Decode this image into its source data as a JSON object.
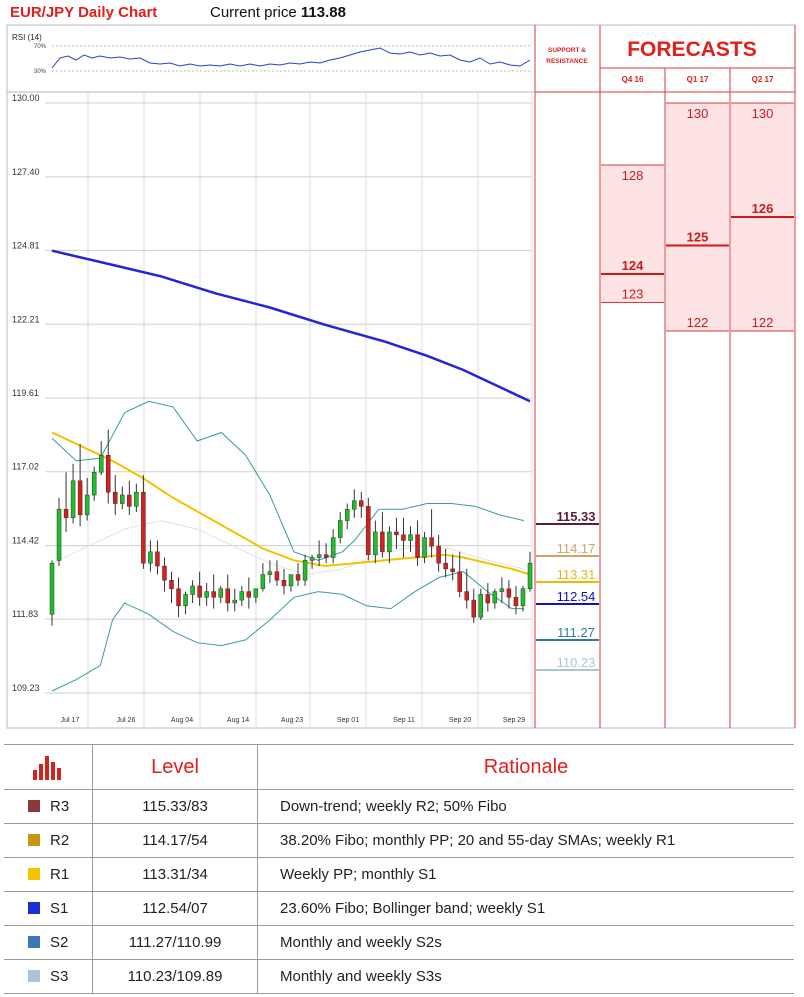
{
  "header": {
    "title": "EUR/JPY Daily Chart",
    "price_label": "Current price",
    "price_value": "113.88"
  },
  "rsi": {
    "label": "RSI (14)",
    "ticks": [
      "70%",
      "30%"
    ]
  },
  "chart_data": {
    "type": "candlestick",
    "title": "EUR/JPY Daily Chart",
    "y_ticks": [
      130.0,
      127.4,
      124.81,
      122.21,
      119.61,
      117.02,
      114.42,
      111.83,
      109.23
    ],
    "ylim": [
      108.0,
      130.3
    ],
    "x_ticks": [
      "Jul 17",
      "Jul 26",
      "Aug 04",
      "Aug 14",
      "Aug 23",
      "Sep 01",
      "Sep 11",
      "Sep 20",
      "Sep 29"
    ],
    "candles": [
      [
        112.0,
        113.9,
        113.8,
        111.6
      ],
      [
        113.9,
        116.1,
        115.7,
        113.7
      ],
      [
        115.7,
        117.0,
        115.4,
        114.9
      ],
      [
        115.4,
        117.3,
        116.7,
        115.2
      ],
      [
        116.7,
        118.0,
        115.5,
        115.1
      ],
      [
        115.5,
        116.8,
        116.2,
        115.3
      ],
      [
        116.2,
        117.2,
        117.0,
        116.0
      ],
      [
        117.0,
        118.1,
        117.6,
        116.9
      ],
      [
        117.6,
        118.5,
        116.3,
        115.9
      ],
      [
        116.3,
        116.9,
        115.9,
        115.5
      ],
      [
        115.9,
        116.5,
        116.2,
        115.7
      ],
      [
        116.2,
        116.7,
        115.8,
        115.5
      ],
      [
        115.8,
        116.6,
        116.3,
        115.6
      ],
      [
        116.3,
        116.9,
        113.8,
        113.6
      ],
      [
        113.8,
        114.6,
        114.2,
        113.5
      ],
      [
        114.2,
        114.6,
        113.7,
        113.4
      ],
      [
        113.7,
        114.0,
        113.2,
        112.8
      ],
      [
        113.2,
        113.5,
        112.9,
        112.4
      ],
      [
        112.9,
        113.3,
        112.3,
        111.9
      ],
      [
        112.3,
        112.8,
        112.7,
        112.0
      ],
      [
        112.7,
        113.2,
        113.0,
        112.4
      ],
      [
        113.0,
        113.5,
        112.6,
        112.3
      ],
      [
        112.6,
        113.1,
        112.8,
        112.3
      ],
      [
        112.8,
        113.4,
        112.6,
        112.2
      ],
      [
        112.6,
        113.0,
        112.9,
        112.4
      ],
      [
        112.9,
        113.4,
        112.4,
        112.1
      ],
      [
        112.4,
        112.9,
        112.5,
        112.1
      ],
      [
        112.5,
        113.0,
        112.8,
        112.3
      ],
      [
        112.8,
        113.3,
        112.6,
        112.2
      ],
      [
        112.6,
        112.9,
        112.9,
        112.4
      ],
      [
        112.9,
        113.8,
        113.4,
        112.8
      ],
      [
        113.4,
        113.9,
        113.5,
        113.1
      ],
      [
        113.5,
        113.9,
        113.2,
        113.0
      ],
      [
        113.2,
        113.6,
        113.0,
        112.7
      ],
      [
        113.0,
        113.4,
        113.4,
        112.8
      ],
      [
        113.4,
        113.8,
        113.2,
        113.0
      ],
      [
        113.2,
        114.1,
        113.9,
        113.0
      ],
      [
        113.9,
        114.1,
        114.0,
        113.6
      ],
      [
        114.0,
        114.6,
        114.1,
        113.7
      ],
      [
        114.1,
        114.5,
        114.0,
        113.8
      ],
      [
        114.0,
        115.0,
        114.7,
        113.8
      ],
      [
        114.7,
        115.6,
        115.3,
        114.5
      ],
      [
        115.3,
        115.9,
        115.7,
        115.0
      ],
      [
        115.7,
        116.4,
        116.0,
        115.4
      ],
      [
        116.0,
        116.3,
        115.8,
        115.4
      ],
      [
        115.8,
        116.1,
        114.1,
        113.9
      ],
      [
        114.1,
        115.3,
        114.9,
        113.8
      ],
      [
        114.9,
        115.6,
        114.2,
        114.0
      ],
      [
        114.2,
        115.1,
        114.9,
        113.8
      ],
      [
        114.9,
        115.4,
        114.8,
        114.3
      ],
      [
        114.8,
        115.4,
        114.6,
        114.0
      ],
      [
        114.6,
        115.1,
        114.8,
        114.2
      ],
      [
        114.8,
        115.3,
        114.0,
        113.7
      ],
      [
        114.0,
        114.9,
        114.7,
        113.8
      ],
      [
        114.7,
        115.7,
        114.4,
        114.0
      ],
      [
        114.4,
        114.8,
        113.8,
        113.5
      ],
      [
        113.8,
        114.3,
        113.6,
        113.3
      ],
      [
        113.6,
        114.1,
        113.5,
        113.2
      ],
      [
        113.5,
        114.2,
        112.8,
        112.6
      ],
      [
        112.8,
        113.6,
        112.5,
        112.2
      ],
      [
        112.5,
        112.9,
        111.9,
        111.7
      ],
      [
        111.9,
        112.9,
        112.7,
        111.8
      ],
      [
        112.7,
        113.1,
        112.4,
        112.1
      ],
      [
        112.4,
        112.9,
        112.8,
        112.2
      ],
      [
        112.8,
        113.3,
        112.9,
        112.4
      ],
      [
        112.9,
        113.2,
        112.6,
        112.2
      ],
      [
        112.6,
        113.0,
        112.3,
        112.0
      ],
      [
        112.3,
        113.0,
        112.9,
        112.1
      ],
      [
        112.9,
        114.2,
        113.8,
        112.8
      ]
    ],
    "sma_blue": [
      [
        0,
        124.8
      ],
      [
        10,
        124.3
      ],
      [
        18,
        123.9
      ],
      [
        27,
        123.3
      ],
      [
        36,
        122.8
      ],
      [
        45,
        122.2
      ],
      [
        55,
        121.6
      ],
      [
        62,
        121.1
      ],
      [
        68,
        120.6
      ],
      [
        75,
        119.9
      ],
      [
        79,
        119.5
      ]
    ],
    "sma_yellow": [
      [
        0,
        118.4
      ],
      [
        5,
        117.9
      ],
      [
        10,
        117.4
      ],
      [
        15,
        116.8
      ],
      [
        20,
        116.1
      ],
      [
        25,
        115.5
      ],
      [
        30,
        114.9
      ],
      [
        35,
        114.3
      ],
      [
        40,
        113.9
      ],
      [
        45,
        113.7
      ],
      [
        50,
        113.8
      ],
      [
        55,
        113.9
      ],
      [
        60,
        114.0
      ],
      [
        65,
        114.1
      ],
      [
        68,
        114.0
      ],
      [
        72,
        113.8
      ],
      [
        76,
        113.6
      ],
      [
        79,
        113.4
      ]
    ],
    "bb_upper": [
      [
        0,
        118.2
      ],
      [
        4,
        117.4
      ],
      [
        8,
        117.5
      ],
      [
        12,
        119.1
      ],
      [
        16,
        119.5
      ],
      [
        20,
        119.3
      ],
      [
        24,
        118.1
      ],
      [
        28,
        118.4
      ],
      [
        32,
        117.6
      ],
      [
        36,
        116.2
      ],
      [
        40,
        114.2
      ],
      [
        44,
        113.9
      ],
      [
        48,
        114.2
      ],
      [
        50,
        114.6
      ],
      [
        54,
        115.7
      ],
      [
        58,
        115.7
      ],
      [
        62,
        115.9
      ],
      [
        66,
        115.9
      ],
      [
        70,
        115.8
      ],
      [
        74,
        115.5
      ],
      [
        78,
        115.3
      ]
    ],
    "bb_middle": [
      [
        0,
        113.8
      ],
      [
        6,
        114.4
      ],
      [
        12,
        115.0
      ],
      [
        18,
        115.3
      ],
      [
        24,
        115.0
      ],
      [
        30,
        114.4
      ],
      [
        36,
        113.8
      ],
      [
        42,
        113.4
      ],
      [
        48,
        113.6
      ],
      [
        54,
        114.1
      ],
      [
        60,
        114.4
      ],
      [
        66,
        114.3
      ],
      [
        72,
        113.9
      ],
      [
        78,
        113.6
      ]
    ],
    "bb_lower": [
      [
        0,
        109.3
      ],
      [
        4,
        109.7
      ],
      [
        8,
        110.2
      ],
      [
        10,
        111.8
      ],
      [
        12,
        112.4
      ],
      [
        16,
        112.0
      ],
      [
        20,
        111.4
      ],
      [
        24,
        111.0
      ],
      [
        28,
        110.9
      ],
      [
        32,
        111.1
      ],
      [
        36,
        111.8
      ],
      [
        40,
        112.6
      ],
      [
        44,
        112.8
      ],
      [
        48,
        112.7
      ],
      [
        52,
        112.3
      ],
      [
        56,
        112.2
      ],
      [
        60,
        112.8
      ],
      [
        64,
        113.3
      ],
      [
        68,
        113.5
      ],
      [
        72,
        112.8
      ],
      [
        76,
        112.2
      ],
      [
        78,
        112.2
      ]
    ],
    "support_resistance": {
      "header": "SUPPORT & RESISTANCE",
      "levels": [
        {
          "value": "115.33",
          "color": "#5a1e34"
        },
        {
          "value": "114.17",
          "color": "#d1a36a"
        },
        {
          "value": "113.31",
          "color": "#e7b913"
        },
        {
          "value": "112.54",
          "color": "#0c14c4"
        },
        {
          "value": "111.27",
          "color": "#2e78a8"
        },
        {
          "value": "110.23",
          "color": "#a9c7cf"
        }
      ]
    },
    "forecasts": {
      "title": "FORECASTS",
      "columns": [
        {
          "label": "Q4 16",
          "high": "128",
          "main": "124",
          "low": "123",
          "range": [
            123.0,
            128.0
          ],
          "main_value": 124.0
        },
        {
          "label": "Q1 17",
          "high": "130",
          "main": "125",
          "low": "122",
          "range": [
            122.0,
            130.0
          ],
          "main_value": 125.0
        },
        {
          "label": "Q2 17",
          "high": "130",
          "main": "126",
          "low": "122",
          "range": [
            122.0,
            130.0
          ],
          "main_value": 126.0
        }
      ]
    }
  },
  "table": {
    "headers": {
      "level": "Level",
      "rationale": "Rationale"
    },
    "rows": [
      {
        "code": "R3",
        "level": "115.33/83",
        "rationale": "Down-trend; weekly R2; 50% Fibo",
        "color": "#8b3a3a"
      },
      {
        "code": "R2",
        "level": "114.17/54",
        "rationale": "38.20% Fibo; monthly PP; 20 and 55-day SMAs; weekly R1",
        "color": "#c8960c"
      },
      {
        "code": "R1",
        "level": "113.31/34",
        "rationale": "Weekly PP; monthly S1",
        "color": "#f2c400"
      },
      {
        "code": "S1",
        "level": "112.54/07",
        "rationale": "23.60% Fibo; Bollinger band; weekly S1",
        "color": "#1a2fd6"
      },
      {
        "code": "S2",
        "level": "111.27/110.99",
        "rationale": "Monthly and weekly S2s",
        "color": "#3b78b8"
      },
      {
        "code": "S3",
        "level": "110.23/109.89",
        "rationale": "Monthly and weekly S3s",
        "color": "#a9c4dc"
      }
    ]
  }
}
